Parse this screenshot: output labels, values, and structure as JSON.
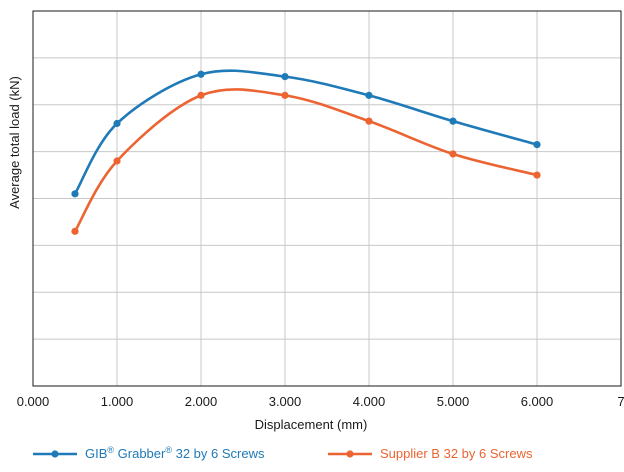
{
  "chart_data": {
    "type": "line",
    "xlabel": "Displacement (mm)",
    "ylabel": "Average total load (kN)",
    "xlim": [
      0,
      7
    ],
    "x_tick_labels": [
      "0.000",
      "1.000",
      "2.000",
      "3.000",
      "4.000",
      "5.000",
      "6.000",
      "7"
    ],
    "x_tick_values": [
      0,
      1,
      2,
      3,
      4,
      5,
      6,
      7
    ],
    "ylim": [
      0,
      8
    ],
    "y_tick_values": [
      0,
      1,
      2,
      3,
      4,
      5,
      6,
      7,
      8
    ],
    "y_tick_labels_shown": false,
    "grid": true,
    "smooth": true,
    "legend_position": "bottom",
    "series": [
      {
        "name_parts": [
          "GIB",
          "®",
          " Grabber",
          "®",
          " 32 by 6 Screws"
        ],
        "color": "#1f7ab8",
        "x": [
          0.5,
          1.0,
          2.0,
          3.0,
          4.0,
          5.0,
          6.0
        ],
        "y": [
          4.1,
          5.6,
          6.65,
          6.6,
          6.2,
          5.65,
          5.15
        ]
      },
      {
        "name_parts": [
          "Supplier B",
          "",
          " 32 by 6 Screws",
          "",
          ""
        ],
        "color": "#ec6432",
        "x": [
          0.5,
          1.0,
          2.0,
          3.0,
          4.0,
          5.0,
          6.0
        ],
        "y": [
          3.3,
          4.8,
          6.2,
          6.2,
          5.65,
          4.95,
          4.5
        ]
      }
    ]
  }
}
